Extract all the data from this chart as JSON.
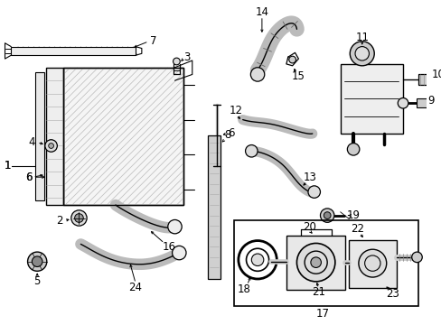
{
  "bg": "#ffffff",
  "lc": "#000000",
  "fig_w": 4.89,
  "fig_h": 3.6,
  "dpi": 100,
  "fs": 7.5,
  "fs_big": 8.5
}
